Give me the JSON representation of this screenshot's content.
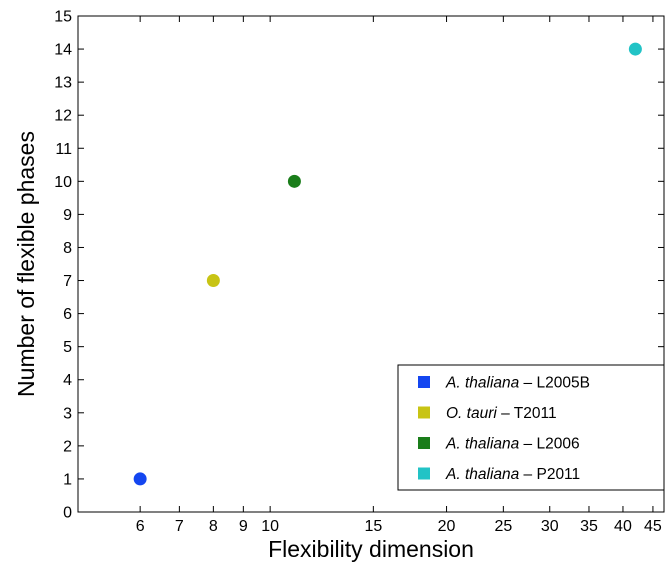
{
  "chart_data": {
    "type": "scatter",
    "xlabel": "Flexibility dimension",
    "ylabel": "Number of flexible phases",
    "x_scale": "log",
    "xlim": [
      4.7,
      47
    ],
    "ylim": [
      0,
      15
    ],
    "x_ticks": [
      6,
      7,
      8,
      9,
      10,
      15,
      20,
      25,
      30,
      35,
      40,
      45
    ],
    "y_ticks": [
      0,
      1,
      2,
      3,
      4,
      5,
      6,
      7,
      8,
      9,
      10,
      11,
      12,
      13,
      14,
      15
    ],
    "grid": false,
    "legend_position": "bottom-right",
    "series": [
      {
        "name_italic": "A. thaliana",
        "name_suffix": " – L2005B",
        "color": "#1446f0",
        "points": [
          {
            "x": 6,
            "y": 1
          }
        ]
      },
      {
        "name_italic": "O. tauri",
        "name_suffix": " – T2011",
        "color": "#c8c414",
        "points": [
          {
            "x": 8,
            "y": 7
          }
        ]
      },
      {
        "name_italic": "A. thaliana",
        "name_suffix": " – L2006",
        "color": "#1a7d1a",
        "points": [
          {
            "x": 11,
            "y": 10
          }
        ]
      },
      {
        "name_italic": "A. thaliana",
        "name_suffix": " – P2011",
        "color": "#22c3c6",
        "points": [
          {
            "x": 42,
            "y": 14
          }
        ]
      }
    ]
  }
}
